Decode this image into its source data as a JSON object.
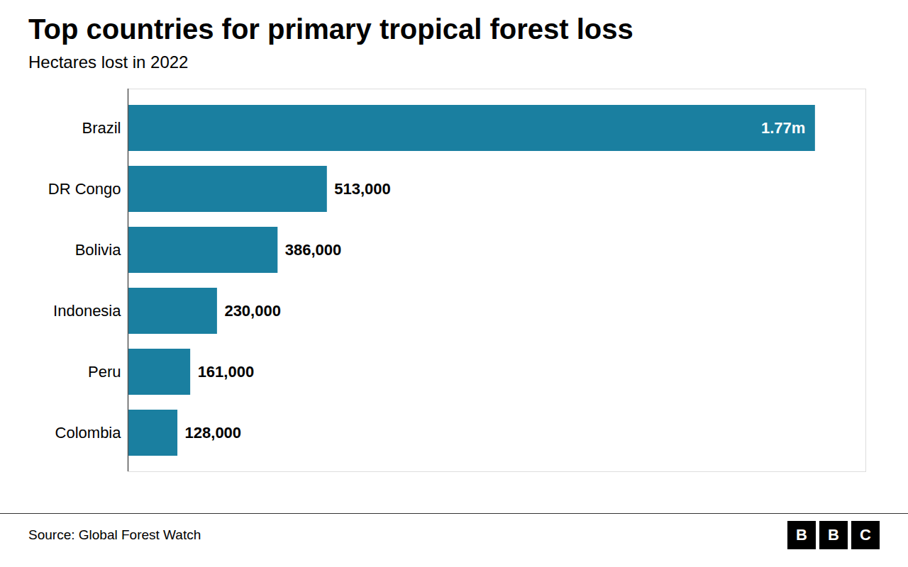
{
  "chart_data": {
    "type": "bar",
    "orientation": "horizontal",
    "title": "Top countries for primary tropical forest loss",
    "subtitle": "Hectares lost in 2022",
    "source": "Source: Global Forest Watch",
    "logo": "BBC",
    "categories": [
      "Brazil",
      "DR Congo",
      "Bolivia",
      "Indonesia",
      "Peru",
      "Colombia"
    ],
    "values": [
      1770000,
      513000,
      386000,
      230000,
      161000,
      128000
    ],
    "value_labels": [
      "1.77m",
      "513,000",
      "386,000",
      "230,000",
      "161,000",
      "128,000"
    ],
    "data_labels": true,
    "color": "#1a7fa0",
    "xlim": [
      0,
      1900000
    ],
    "xticks": [],
    "tick_labels": "y",
    "grid": false
  }
}
